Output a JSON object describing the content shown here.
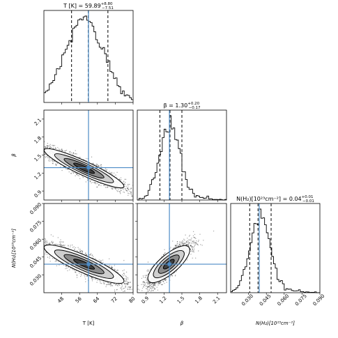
{
  "chart_data": {
    "type": "corner",
    "params": [
      {
        "key": "T",
        "axis_label": "T [K]",
        "title_main": "T [K] = 59.89",
        "title_plus": "+8.80",
        "title_minus": "−7.51",
        "range": [
          40,
          80
        ],
        "ticks": [
          48,
          56,
          64,
          72,
          80
        ],
        "tick_labels": [
          "48",
          "56",
          "64",
          "72",
          "80"
        ],
        "truth": 60.0,
        "quantiles": [
          52.4,
          59.9,
          68.7
        ],
        "hist_mean": 58,
        "hist_sd": 8.5
      },
      {
        "key": "beta",
        "axis_label": "β",
        "title_main": "β = 1.30",
        "title_plus": "+0.20",
        "title_minus": "−0.17",
        "range": [
          0.75,
          2.25
        ],
        "ticks": [
          0.9,
          1.2,
          1.5,
          1.8,
          2.1
        ],
        "tick_labels": [
          "0.9",
          "1.2",
          "1.5",
          "1.8",
          "2.1"
        ],
        "truth": 1.29,
        "quantiles": [
          1.13,
          1.3,
          1.5
        ],
        "hist_mean": 1.28,
        "hist_sd": 0.16
      },
      {
        "key": "NH2",
        "axis_label": "N(H₂)[10²³cm⁻²]",
        "title_main": "N(H₂)[10²³cm⁻²] = 0.04",
        "title_plus": "+0.01",
        "title_minus": "−0.01",
        "range": [
          0.015,
          0.09
        ],
        "ticks": [
          0.03,
          0.045,
          0.06,
          0.075,
          0.09
        ],
        "tick_labels": [
          "0.030",
          "0.045",
          "0.060",
          "0.075",
          "0.090"
        ],
        "truth": 0.039,
        "quantiles": [
          0.031,
          0.038,
          0.049
        ],
        "hist_mean": 0.039,
        "hist_sd": 0.008
      }
    ],
    "pairs": [
      {
        "x": "T",
        "y": "beta",
        "correlation": -0.92
      },
      {
        "x": "T",
        "y": "NH2",
        "correlation": -0.88
      },
      {
        "x": "beta",
        "y": "NH2",
        "correlation": 0.85
      }
    ],
    "colors": {
      "truth": "#4c8bc6",
      "hist": "#000000",
      "quantile": "#000000",
      "scatter": "#000000",
      "contour_fill": [
        "#ffffff",
        "#cfcfcf",
        "#8c8c8c",
        "#3f3f3f"
      ]
    }
  }
}
